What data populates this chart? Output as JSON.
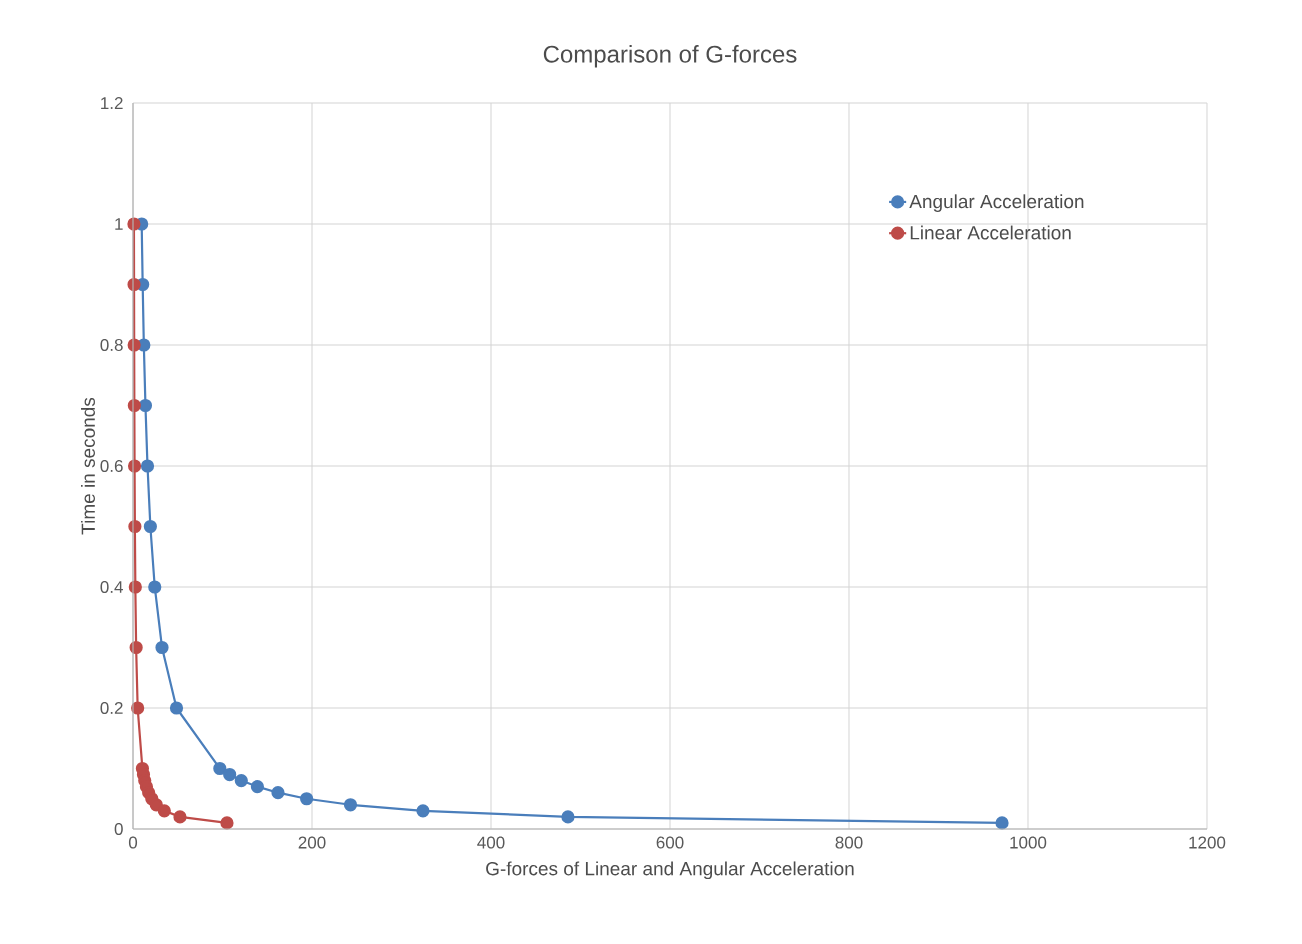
{
  "chart_data": {
    "type": "line",
    "title": "Comparison of G-forces",
    "xlabel": "G-forces of Linear and Angular Acceleration",
    "ylabel": "Time in seconds",
    "series": [
      {
        "name": "Angular Acceleration",
        "color": "#4a7ebb",
        "x": [
          9.7,
          10.8,
          12.1,
          13.9,
          16.2,
          19.4,
          24.3,
          32.4,
          48.6,
          97,
          108,
          121,
          139,
          162,
          194,
          243,
          324,
          486,
          971
        ],
        "values": [
          1,
          0.9,
          0.8,
          0.7,
          0.6,
          0.5,
          0.4,
          0.3,
          0.2,
          0.1,
          0.09,
          0.08,
          0.07,
          0.06,
          0.05,
          0.04,
          0.03,
          0.02,
          0.01
        ]
      },
      {
        "name": "Linear Acceleration",
        "color": "#be4b48",
        "x": [
          1.05,
          1.17,
          1.31,
          1.5,
          1.75,
          2.1,
          2.6,
          3.5,
          5.2,
          10.5,
          11.7,
          13.1,
          15,
          17.5,
          21,
          26,
          35,
          52.5,
          105
        ],
        "values": [
          1,
          0.9,
          0.8,
          0.7,
          0.6,
          0.5,
          0.4,
          0.3,
          0.2,
          0.1,
          0.09,
          0.08,
          0.07,
          0.06,
          0.05,
          0.04,
          0.03,
          0.02,
          0.01
        ]
      }
    ],
    "xlim": [
      0,
      1200
    ],
    "xticks": [
      0,
      200,
      400,
      600,
      800,
      1000,
      1200
    ],
    "ylim": [
      0,
      1.2
    ],
    "yticks": [
      0,
      {
        "value": 0.2,
        "label": "0.2"
      },
      {
        "value": 0.4,
        "label": "0.4"
      },
      {
        "value": 0.6,
        "label": "0.6"
      },
      {
        "value": 0.8,
        "label": "0.8"
      },
      1,
      1.2
    ],
    "grid": true,
    "legend": "top right",
    "marker": "circle",
    "line_style": "solid"
  }
}
